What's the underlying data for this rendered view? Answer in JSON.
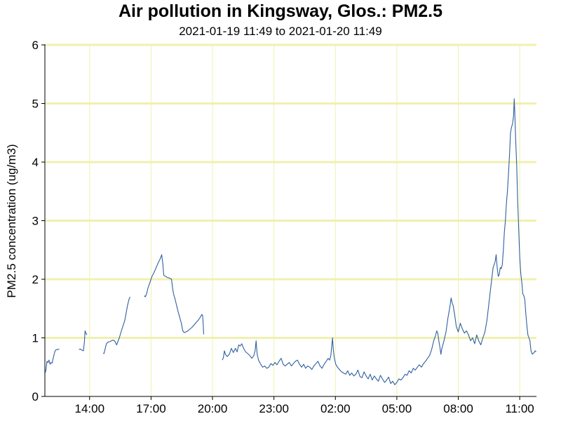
{
  "chart_data": {
    "type": "line",
    "title": "Air pollution in Kingsway, Glos.: PM2.5",
    "subtitle": "2021-01-19 11:49 to 2021-01-20 11:49",
    "xlabel": "",
    "ylabel": "PM2.5 concentration (ug/m3)",
    "ylim": [
      0,
      6
    ],
    "y_ticks": [
      "0",
      "1",
      "2",
      "3",
      "4",
      "5",
      "6"
    ],
    "x_range_hours": [
      11.817,
      35.817
    ],
    "x_ticks": [
      {
        "label": "14:00",
        "hour": 14
      },
      {
        "label": "17:00",
        "hour": 17
      },
      {
        "label": "20:00",
        "hour": 20
      },
      {
        "label": "23:00",
        "hour": 23
      },
      {
        "label": "02:00",
        "hour": 26
      },
      {
        "label": "05:00",
        "hour": 29
      },
      {
        "label": "08:00",
        "hour": 32
      },
      {
        "label": "11:00",
        "hour": 35
      }
    ],
    "grid": true,
    "legend": "none",
    "colors": {
      "line": "#3060a0",
      "grid": "#f0f0b0",
      "axis": "#000000"
    },
    "series": [
      {
        "segments": [
          [
            [
              11.82,
              0.4
            ],
            [
              11.87,
              0.45
            ],
            [
              11.92,
              0.6
            ],
            [
              11.97,
              0.58
            ],
            [
              12.02,
              0.62
            ],
            [
              12.07,
              0.55
            ],
            [
              12.12,
              0.58
            ],
            [
              12.17,
              0.57
            ],
            [
              12.22,
              0.65
            ],
            [
              12.27,
              0.72
            ],
            [
              12.32,
              0.78
            ],
            [
              12.37,
              0.8
            ],
            [
              12.45,
              0.8
            ],
            [
              12.52,
              0.81
            ]
          ],
          [
            [
              13.48,
              0.8
            ],
            [
              13.55,
              0.81
            ],
            [
              13.62,
              0.79
            ],
            [
              13.7,
              0.78
            ],
            [
              13.75,
              0.95
            ],
            [
              13.78,
              1.12
            ],
            [
              13.82,
              1.08
            ],
            [
              13.87,
              1.05
            ]
          ],
          [
            [
              14.67,
              0.74
            ],
            [
              14.7,
              0.73
            ],
            [
              14.75,
              0.8
            ],
            [
              14.82,
              0.9
            ],
            [
              14.92,
              0.93
            ],
            [
              15.02,
              0.94
            ],
            [
              15.12,
              0.96
            ],
            [
              15.22,
              0.95
            ],
            [
              15.32,
              0.88
            ],
            [
              15.45,
              1.0
            ],
            [
              15.58,
              1.15
            ],
            [
              15.72,
              1.3
            ],
            [
              15.85,
              1.55
            ],
            [
              15.92,
              1.65
            ],
            [
              15.97,
              1.7
            ]
          ],
          [
            [
              16.67,
              1.72
            ],
            [
              16.72,
              1.7
            ],
            [
              16.78,
              1.75
            ],
            [
              16.85,
              1.85
            ],
            [
              16.95,
              1.95
            ],
            [
              17.05,
              2.05
            ],
            [
              17.15,
              2.12
            ],
            [
              17.25,
              2.2
            ],
            [
              17.35,
              2.28
            ],
            [
              17.45,
              2.35
            ],
            [
              17.52,
              2.42
            ],
            [
              17.58,
              2.25
            ],
            [
              17.62,
              2.07
            ],
            [
              17.7,
              2.05
            ],
            [
              17.8,
              2.03
            ],
            [
              17.9,
              2.02
            ],
            [
              18.0,
              2.0
            ],
            [
              18.05,
              1.85
            ],
            [
              18.1,
              1.75
            ],
            [
              18.18,
              1.65
            ],
            [
              18.25,
              1.55
            ],
            [
              18.32,
              1.45
            ],
            [
              18.4,
              1.35
            ],
            [
              18.48,
              1.25
            ],
            [
              18.55,
              1.12
            ],
            [
              18.62,
              1.09
            ],
            [
              18.7,
              1.1
            ],
            [
              18.8,
              1.12
            ],
            [
              18.9,
              1.15
            ],
            [
              19.0,
              1.18
            ],
            [
              19.1,
              1.22
            ],
            [
              19.2,
              1.26
            ],
            [
              19.3,
              1.3
            ],
            [
              19.4,
              1.35
            ],
            [
              19.48,
              1.4
            ],
            [
              19.52,
              1.38
            ],
            [
              19.55,
              1.2
            ],
            [
              19.57,
              1.06
            ]
          ],
          [
            [
              20.48,
              0.62
            ],
            [
              20.53,
              0.66
            ],
            [
              20.58,
              0.78
            ],
            [
              20.63,
              0.72
            ],
            [
              20.72,
              0.68
            ],
            [
              20.82,
              0.72
            ],
            [
              20.92,
              0.82
            ],
            [
              21.02,
              0.75
            ],
            [
              21.12,
              0.82
            ],
            [
              21.2,
              0.76
            ],
            [
              21.28,
              0.88
            ],
            [
              21.35,
              0.86
            ],
            [
              21.43,
              0.9
            ],
            [
              21.52,
              0.82
            ],
            [
              21.62,
              0.76
            ],
            [
              21.72,
              0.73
            ],
            [
              21.82,
              0.7
            ],
            [
              21.92,
              0.65
            ],
            [
              22.02,
              0.7
            ],
            [
              22.08,
              0.78
            ],
            [
              22.13,
              0.95
            ],
            [
              22.18,
              0.72
            ],
            [
              22.25,
              0.62
            ],
            [
              22.35,
              0.55
            ],
            [
              22.45,
              0.5
            ],
            [
              22.55,
              0.52
            ],
            [
              22.65,
              0.48
            ],
            [
              22.75,
              0.5
            ],
            [
              22.85,
              0.56
            ],
            [
              22.95,
              0.53
            ],
            [
              23.05,
              0.58
            ],
            [
              23.15,
              0.54
            ],
            [
              23.25,
              0.6
            ],
            [
              23.35,
              0.65
            ],
            [
              23.45,
              0.55
            ],
            [
              23.55,
              0.52
            ],
            [
              23.65,
              0.55
            ],
            [
              23.75,
              0.58
            ],
            [
              23.85,
              0.52
            ],
            [
              23.95,
              0.56
            ],
            [
              24.05,
              0.6
            ],
            [
              24.15,
              0.62
            ],
            [
              24.25,
              0.55
            ],
            [
              24.35,
              0.5
            ],
            [
              24.45,
              0.55
            ],
            [
              24.55,
              0.48
            ],
            [
              24.65,
              0.52
            ],
            [
              24.75,
              0.5
            ],
            [
              24.85,
              0.46
            ],
            [
              24.95,
              0.52
            ],
            [
              25.05,
              0.56
            ],
            [
              25.15,
              0.6
            ],
            [
              25.25,
              0.52
            ],
            [
              25.35,
              0.48
            ],
            [
              25.45,
              0.55
            ],
            [
              25.55,
              0.6
            ],
            [
              25.65,
              0.65
            ],
            [
              25.72,
              0.62
            ],
            [
              25.78,
              0.7
            ],
            [
              25.82,
              0.85
            ],
            [
              25.86,
              1.0
            ],
            [
              25.9,
              0.8
            ],
            [
              25.95,
              0.65
            ],
            [
              26.02,
              0.55
            ],
            [
              26.1,
              0.5
            ],
            [
              26.2,
              0.46
            ],
            [
              26.3,
              0.42
            ],
            [
              26.4,
              0.4
            ],
            [
              26.5,
              0.38
            ],
            [
              26.6,
              0.44
            ],
            [
              26.7,
              0.36
            ],
            [
              26.8,
              0.4
            ],
            [
              26.9,
              0.35
            ],
            [
              27.0,
              0.38
            ],
            [
              27.1,
              0.45
            ],
            [
              27.2,
              0.34
            ],
            [
              27.3,
              0.32
            ],
            [
              27.4,
              0.42
            ],
            [
              27.5,
              0.35
            ],
            [
              27.6,
              0.3
            ],
            [
              27.7,
              0.38
            ],
            [
              27.8,
              0.28
            ],
            [
              27.9,
              0.35
            ],
            [
              28.0,
              0.3
            ],
            [
              28.1,
              0.26
            ],
            [
              28.2,
              0.36
            ],
            [
              28.3,
              0.3
            ],
            [
              28.4,
              0.24
            ],
            [
              28.5,
              0.28
            ],
            [
              28.6,
              0.33
            ],
            [
              28.7,
              0.22
            ],
            [
              28.8,
              0.26
            ],
            [
              28.9,
              0.2
            ],
            [
              29.0,
              0.24
            ],
            [
              29.1,
              0.3
            ],
            [
              29.2,
              0.28
            ],
            [
              29.3,
              0.32
            ],
            [
              29.4,
              0.38
            ],
            [
              29.5,
              0.36
            ],
            [
              29.6,
              0.44
            ],
            [
              29.7,
              0.4
            ],
            [
              29.8,
              0.48
            ],
            [
              29.9,
              0.45
            ],
            [
              30.0,
              0.5
            ],
            [
              30.1,
              0.54
            ],
            [
              30.2,
              0.5
            ],
            [
              30.3,
              0.56
            ],
            [
              30.4,
              0.6
            ],
            [
              30.5,
              0.65
            ],
            [
              30.6,
              0.7
            ],
            [
              30.7,
              0.8
            ],
            [
              30.8,
              0.95
            ],
            [
              30.9,
              1.05
            ],
            [
              30.95,
              1.12
            ],
            [
              31.0,
              1.08
            ],
            [
              31.05,
              0.95
            ],
            [
              31.1,
              0.85
            ],
            [
              31.15,
              0.72
            ],
            [
              31.2,
              0.82
            ],
            [
              31.3,
              0.95
            ],
            [
              31.4,
              1.1
            ],
            [
              31.5,
              1.35
            ],
            [
              31.55,
              1.45
            ],
            [
              31.6,
              1.55
            ],
            [
              31.65,
              1.68
            ],
            [
              31.7,
              1.6
            ],
            [
              31.75,
              1.55
            ],
            [
              31.82,
              1.4
            ],
            [
              31.9,
              1.2
            ],
            [
              32.0,
              1.1
            ],
            [
              32.1,
              1.25
            ],
            [
              32.2,
              1.15
            ],
            [
              32.3,
              1.08
            ],
            [
              32.4,
              1.12
            ],
            [
              32.5,
              1.05
            ],
            [
              32.6,
              0.95
            ],
            [
              32.7,
              1.0
            ],
            [
              32.8,
              0.9
            ],
            [
              32.9,
              1.05
            ],
            [
              33.0,
              0.95
            ],
            [
              33.1,
              0.88
            ],
            [
              33.2,
              1.0
            ],
            [
              33.3,
              1.1
            ],
            [
              33.4,
              1.3
            ],
            [
              33.5,
              1.6
            ],
            [
              33.6,
              1.9
            ],
            [
              33.7,
              2.2
            ],
            [
              33.8,
              2.3
            ],
            [
              33.85,
              2.42
            ],
            [
              33.9,
              2.2
            ],
            [
              33.95,
              2.05
            ],
            [
              34.0,
              2.08
            ],
            [
              34.05,
              2.2
            ],
            [
              34.1,
              2.18
            ],
            [
              34.15,
              2.25
            ],
            [
              34.2,
              2.5
            ],
            [
              34.25,
              2.8
            ],
            [
              34.3,
              3.0
            ],
            [
              34.35,
              3.3
            ],
            [
              34.4,
              3.5
            ],
            [
              34.45,
              3.8
            ],
            [
              34.5,
              4.1
            ],
            [
              34.55,
              4.5
            ],
            [
              34.6,
              4.6
            ],
            [
              34.65,
              4.65
            ],
            [
              34.7,
              4.8
            ],
            [
              34.73,
              5.08
            ],
            [
              34.76,
              4.85
            ],
            [
              34.8,
              4.4
            ],
            [
              34.85,
              3.95
            ],
            [
              34.9,
              3.35
            ],
            [
              34.95,
              2.85
            ],
            [
              35.0,
              2.4
            ],
            [
              35.05,
              2.1
            ],
            [
              35.1,
              1.95
            ],
            [
              35.15,
              1.75
            ],
            [
              35.2,
              1.72
            ],
            [
              35.25,
              1.65
            ],
            [
              35.3,
              1.4
            ],
            [
              35.35,
              1.2
            ],
            [
              35.4,
              1.05
            ],
            [
              35.45,
              1.0
            ],
            [
              35.5,
              0.95
            ],
            [
              35.55,
              0.78
            ],
            [
              35.62,
              0.72
            ],
            [
              35.7,
              0.75
            ],
            [
              35.76,
              0.78
            ],
            [
              35.8,
              0.76
            ]
          ]
        ]
      }
    ]
  }
}
